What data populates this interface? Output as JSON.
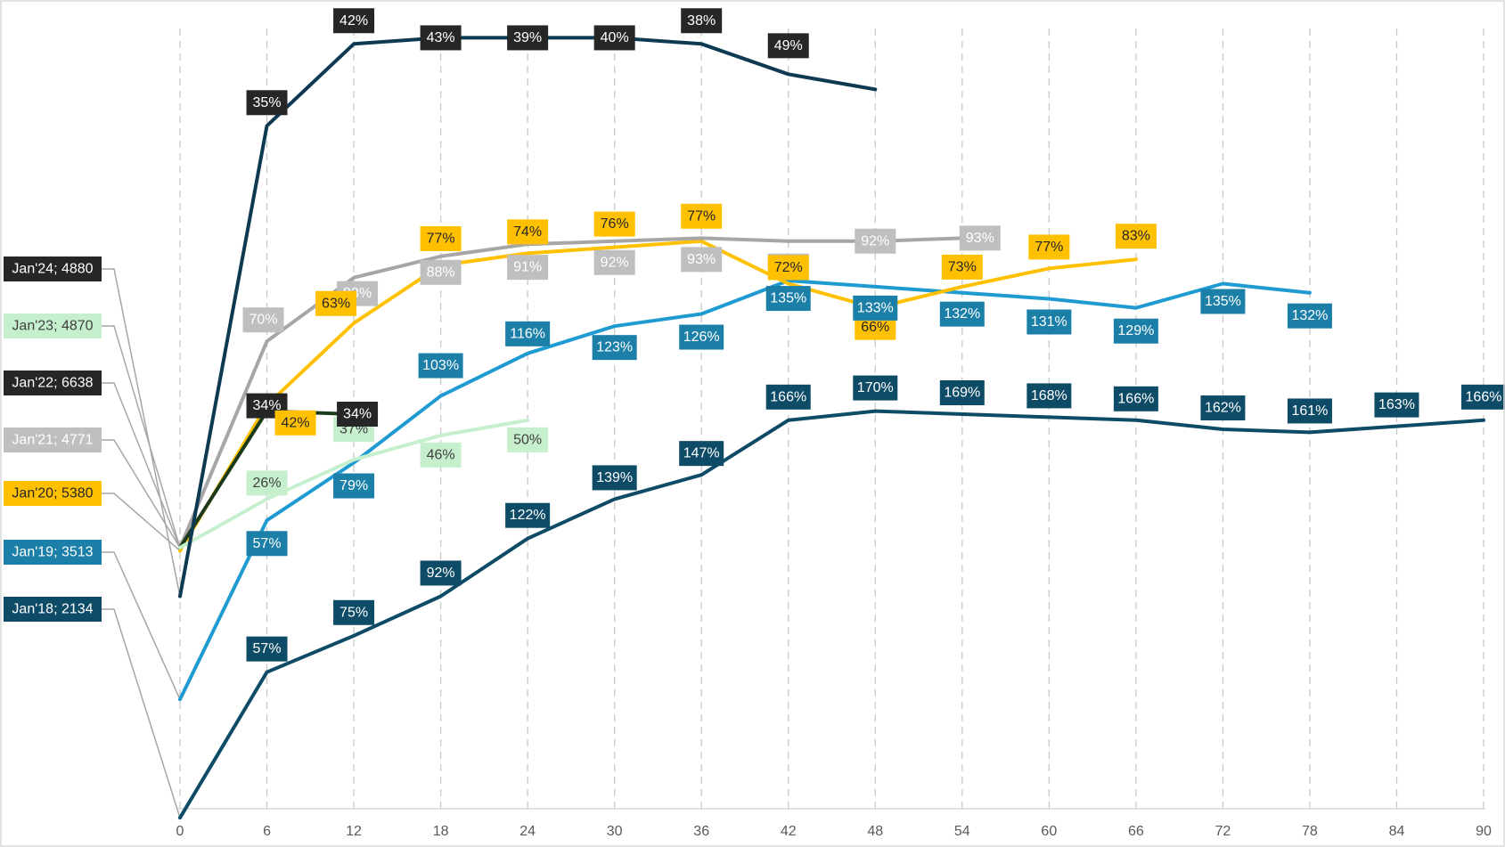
{
  "chart_data": {
    "type": "line",
    "title": "",
    "xlabel": "",
    "ylabel": "",
    "x_ticks": [
      0,
      6,
      12,
      18,
      24,
      30,
      36,
      42,
      48,
      54,
      60,
      66,
      72,
      78,
      84,
      90
    ],
    "xlim": [
      0,
      90
    ],
    "ylim": [
      -20,
      240
    ],
    "grid": {
      "vertical": true,
      "horizontal": false
    },
    "legend": "left, series labels at x = 0",
    "series": [
      {
        "name": "Jan'24; 4880",
        "color": "#0d3a52",
        "label_bg": "#262626",
        "label_fg": "#ffffff",
        "points": [
          [
            0,
            50
          ],
          [
            6,
            205
          ],
          [
            12,
            232
          ],
          [
            18,
            234
          ],
          [
            24,
            234
          ],
          [
            30,
            234
          ],
          [
            36,
            232
          ],
          [
            42,
            222
          ],
          [
            48,
            217
          ]
        ],
        "data_labels": [
          "",
          "35%",
          "42%",
          "43%",
          "39%",
          "40%",
          "38%",
          "49%",
          ""
        ]
      },
      {
        "name": "Jan'23; 4870",
        "color": "#c6efce",
        "label_bg": "#c6efce",
        "label_fg": "#404040",
        "points": [
          [
            0,
            66
          ],
          [
            6,
            82
          ],
          [
            12,
            95
          ],
          [
            18,
            103
          ],
          [
            24,
            108
          ]
        ],
        "data_labels": [
          "",
          "26%",
          "37%",
          "46%",
          "50%"
        ]
      },
      {
        "name": "Jan'22; 6638",
        "color": "#1b3a1b",
        "label_bg": "#262626",
        "label_fg": "#ffffff",
        "points": [
          [
            0,
            66
          ],
          [
            6,
            111
          ],
          [
            12,
            110
          ]
        ],
        "data_labels": [
          "",
          "34%",
          "34%"
        ]
      },
      {
        "name": "Jan'21; 4771",
        "color": "#a6a6a6",
        "label_bg": "#bfbfbf",
        "label_fg": "#ffffff",
        "points": [
          [
            0,
            66
          ],
          [
            6,
            134
          ],
          [
            12,
            155
          ],
          [
            18,
            162
          ],
          [
            24,
            166
          ],
          [
            30,
            167
          ],
          [
            36,
            168
          ],
          [
            42,
            167
          ],
          [
            48,
            167
          ],
          [
            54,
            168
          ]
        ],
        "data_labels": [
          "",
          "70%",
          "83%",
          "88%",
          "91%",
          "92%",
          "93%",
          "92%",
          "92%",
          "93%"
        ]
      },
      {
        "name": "Jan'20; 5380",
        "color": "#ffc000",
        "label_bg": "#ffc000",
        "label_fg": "#262626",
        "points": [
          [
            0,
            65
          ],
          [
            6,
            113
          ],
          [
            12,
            140
          ],
          [
            18,
            159
          ],
          [
            24,
            163
          ],
          [
            30,
            165
          ],
          [
            36,
            167
          ],
          [
            42,
            153
          ],
          [
            48,
            145
          ],
          [
            54,
            152
          ],
          [
            60,
            158
          ],
          [
            66,
            161
          ]
        ],
        "data_labels": [
          "",
          "42%",
          "63%",
          "77%",
          "74%",
          "76%",
          "77%",
          "72%",
          "66%",
          "73%",
          "77%",
          "83%"
        ]
      },
      {
        "name": "Jan'19; 3513",
        "color": "#1f9bd2",
        "label_bg": "#1b7fa8",
        "label_fg": "#ffffff",
        "points": [
          [
            0,
            16
          ],
          [
            6,
            75
          ],
          [
            12,
            94
          ],
          [
            18,
            116
          ],
          [
            24,
            130
          ],
          [
            30,
            139
          ],
          [
            36,
            143
          ],
          [
            42,
            154
          ],
          [
            48,
            152
          ],
          [
            54,
            150
          ],
          [
            60,
            148
          ],
          [
            66,
            145
          ],
          [
            72,
            153
          ],
          [
            78,
            150
          ]
        ],
        "data_labels": [
          "",
          "57%",
          "79%",
          "103%",
          "116%",
          "123%",
          "126%",
          "135%",
          "133%",
          "132%",
          "131%",
          "129%",
          "135%",
          "132%"
        ]
      },
      {
        "name": "Jan'18; 2134",
        "color": "#0e4b66",
        "label_bg": "#0e4b66",
        "label_fg": "#ffffff",
        "points": [
          [
            0,
            -23
          ],
          [
            6,
            25
          ],
          [
            12,
            37
          ],
          [
            18,
            50
          ],
          [
            24,
            69
          ],
          [
            30,
            82
          ],
          [
            36,
            90
          ],
          [
            42,
            108
          ],
          [
            48,
            111
          ],
          [
            54,
            110
          ],
          [
            60,
            109
          ],
          [
            66,
            108
          ],
          [
            72,
            105
          ],
          [
            78,
            104
          ],
          [
            84,
            106
          ],
          [
            90,
            108
          ]
        ],
        "data_labels": [
          "",
          "57%",
          "75%",
          "92%",
          "122%",
          "139%",
          "147%",
          "166%",
          "170%",
          "169%",
          "168%",
          "166%",
          "162%",
          "161%",
          "163%",
          "166%"
        ]
      }
    ]
  }
}
